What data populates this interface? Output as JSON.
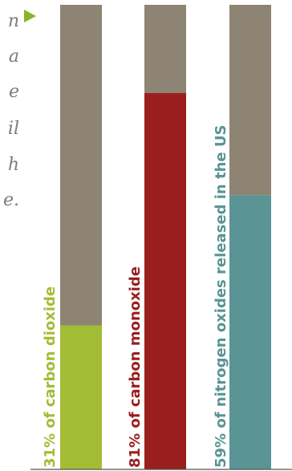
{
  "side_text": [
    "n",
    "a",
    "e",
    "il",
    "h",
    "e."
  ],
  "colors": {
    "pattern_bg": "#8e8474",
    "pattern_shape": "#d6d2cb",
    "axis": "#555555",
    "arrow": "#8ab52a",
    "side_text": "#7e7b79"
  },
  "chart_data": {
    "type": "bar",
    "orientation": "vertical",
    "categories": [
      "31% of carbon dioxide",
      "81% of carbon monoxide",
      "59% of nitrogen oxides released in the US"
    ],
    "values": [
      31,
      81,
      59
    ],
    "unit": "%",
    "ylim": [
      0,
      100
    ],
    "colors": [
      "#a3bc36",
      "#9b1e1f",
      "#5a9495"
    ],
    "grid": false,
    "legend": "none",
    "title": "",
    "xlabel": "",
    "ylabel": ""
  }
}
